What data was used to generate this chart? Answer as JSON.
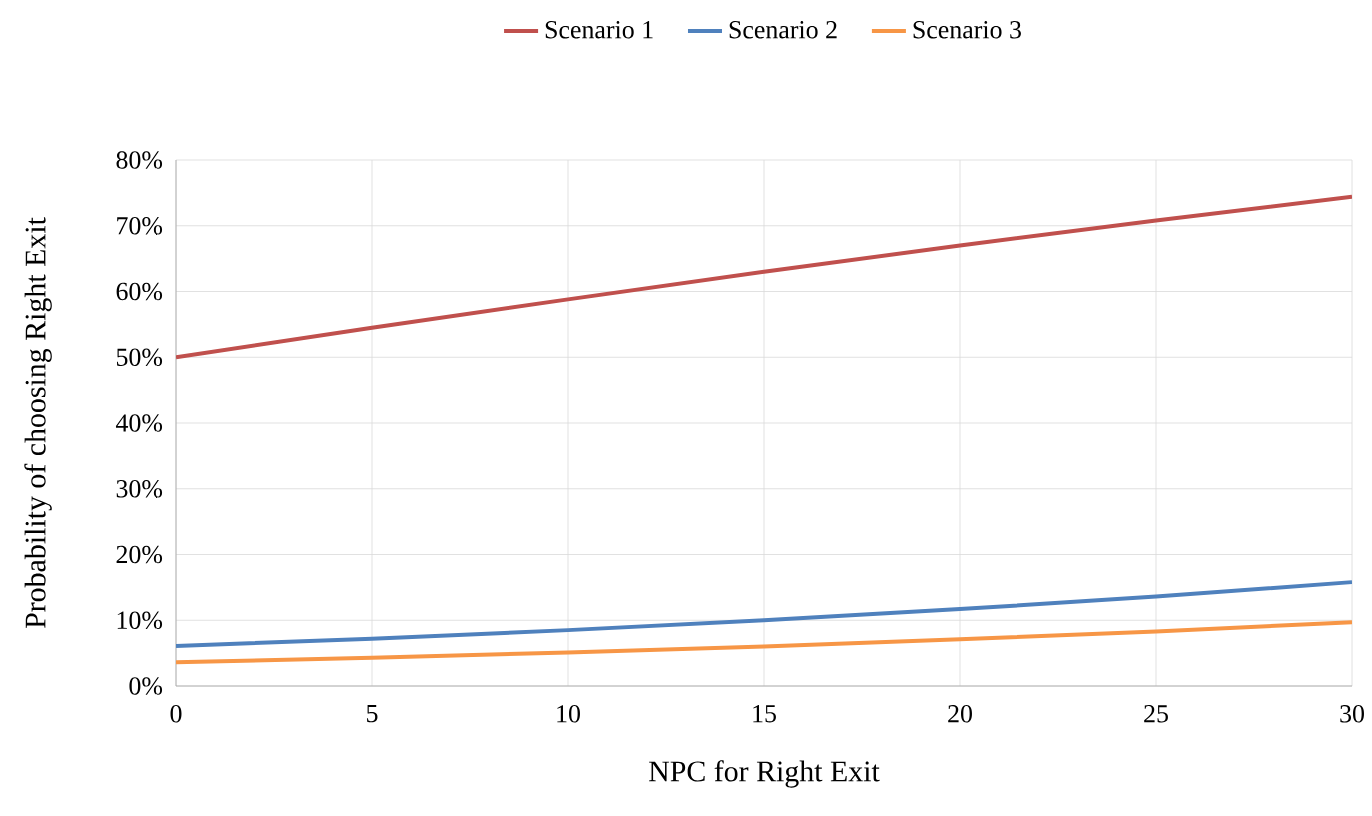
{
  "chart_data": {
    "type": "line",
    "xlabel": "NPC for Right Exit",
    "ylabel": "Probability of choosing Right Exit",
    "x": [
      0,
      5,
      10,
      15,
      20,
      25,
      30
    ],
    "series": [
      {
        "name": "Scenario 1",
        "color": "#c0504d",
        "values": [
          50,
          54.5,
          58.8,
          63,
          67,
          70.8,
          74.4
        ]
      },
      {
        "name": "Scenario 2",
        "color": "#4f81bd",
        "values": [
          6.1,
          7.2,
          8.5,
          10,
          11.7,
          13.6,
          15.8
        ]
      },
      {
        "name": "Scenario 3",
        "color": "#f79646",
        "values": [
          3.6,
          4.3,
          5.1,
          6,
          7.1,
          8.3,
          9.7
        ]
      }
    ],
    "xlim": [
      0,
      30
    ],
    "xticks": [
      0,
      5,
      10,
      15,
      20,
      25,
      30
    ],
    "ylim": [
      0,
      80
    ],
    "yticks": [
      {
        "value": 0,
        "label": "0%"
      },
      {
        "value": 10,
        "label": "10%"
      },
      {
        "value": 20,
        "label": "20%"
      },
      {
        "value": 30,
        "label": "30%"
      },
      {
        "value": 40,
        "label": "40%"
      },
      {
        "value": 50,
        "label": "50%"
      },
      {
        "value": 60,
        "label": "60%"
      },
      {
        "value": 70,
        "label": "70%"
      },
      {
        "value": 80,
        "label": "80%"
      }
    ],
    "grid": true,
    "legend": "top",
    "marker": "none",
    "line_style": "solid"
  }
}
